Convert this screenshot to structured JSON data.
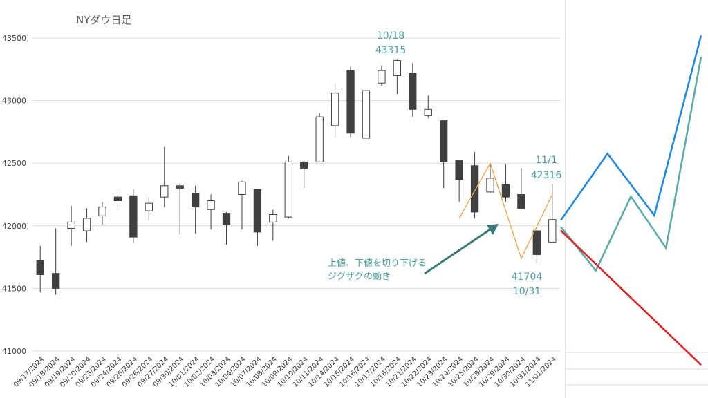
{
  "colors": {
    "up_fill": "#ffffff",
    "down_fill": "#404040",
    "candle_stroke": "#404040",
    "teal": "#4aa3a3",
    "arrow": "#3a7a7a",
    "zigzag": "#f0a040",
    "grid": "#d9d9d9",
    "blue": "#1e88e5",
    "green": "#5aacaa",
    "red": "#e02020"
  },
  "chart_data": [
    {
      "type": "candlestick",
      "title": "NYダウ日足",
      "xlabel": "",
      "ylabel": "",
      "ylim": [
        41000,
        43500
      ],
      "yticks": [
        41000,
        41500,
        42000,
        42500,
        43000,
        43500
      ],
      "grid": true,
      "categories": [
        "09/17/2024",
        "09/18/2024",
        "09/19/2024",
        "09/20/2024",
        "09/23/2024",
        "09/24/2024",
        "09/25/2024",
        "09/26/2024",
        "09/27/2024",
        "09/30/2024",
        "10/01/2024",
        "10/02/2024",
        "10/03/2024",
        "10/04/2024",
        "10/07/2024",
        "10/08/2024",
        "10/09/2024",
        "10/10/2024",
        "10/11/2024",
        "10/14/2024",
        "10/15/2024",
        "10/16/2024",
        "10/17/2024",
        "10/18/2024",
        "10/21/2024",
        "10/22/2024",
        "10/23/2024",
        "10/24/2024",
        "10/25/2024",
        "10/28/2024",
        "10/29/2024",
        "10/30/2024",
        "10/31/2024",
        "11/01/2024"
      ],
      "ohlc": [
        [
          41720,
          41840,
          41470,
          41610
        ],
        [
          41620,
          41980,
          41450,
          41500
        ],
        [
          41980,
          42160,
          41840,
          42030
        ],
        [
          41960,
          42140,
          41870,
          42060
        ],
        [
          42080,
          42190,
          42010,
          42150
        ],
        [
          42230,
          42270,
          42150,
          42200
        ],
        [
          42240,
          42290,
          41860,
          41910
        ],
        [
          42120,
          42220,
          42040,
          42180
        ],
        [
          42230,
          42630,
          42150,
          42320
        ],
        [
          42320,
          42340,
          41930,
          42300
        ],
        [
          42260,
          42320,
          41940,
          42150
        ],
        [
          42130,
          42250,
          41970,
          42200
        ],
        [
          42100,
          42110,
          41850,
          42010
        ],
        [
          42250,
          42360,
          41970,
          42350
        ],
        [
          42290,
          42290,
          41840,
          41950
        ],
        [
          42030,
          42130,
          41880,
          42090
        ],
        [
          42070,
          42560,
          42060,
          42510
        ],
        [
          42510,
          42520,
          42300,
          42460
        ],
        [
          42510,
          42900,
          42510,
          42870
        ],
        [
          42800,
          43140,
          42710,
          43060
        ],
        [
          43240,
          43270,
          42710,
          42740
        ],
        [
          42700,
          43080,
          42690,
          43080
        ],
        [
          43140,
          43280,
          43120,
          43240
        ],
        [
          43200,
          43330,
          43050,
          43320
        ],
        [
          43220,
          43300,
          42870,
          42930
        ],
        [
          42880,
          43040,
          42860,
          42930
        ],
        [
          42840,
          42840,
          42300,
          42510
        ],
        [
          42520,
          42520,
          42190,
          42370
        ],
        [
          42480,
          42590,
          42060,
          42110
        ],
        [
          42270,
          42490,
          42260,
          42380
        ],
        [
          42330,
          42490,
          42190,
          42230
        ],
        [
          42250,
          42460,
          42140,
          42140
        ],
        [
          41960,
          41990,
          41700,
          41770
        ],
        [
          41870,
          42330,
          41860,
          42050
        ]
      ],
      "zigzag": {
        "points": [
          {
            "x": "10/24/2024",
            "y": 42060
          },
          {
            "x": "10/28/2024",
            "y": 42500
          },
          {
            "x": "10/30/2024",
            "y": 41740
          },
          {
            "x": "11/01/2024",
            "y": 42250
          }
        ]
      },
      "annotations": [
        {
          "line1": "10/18",
          "line2": "43315"
        },
        {
          "line1": "11/1",
          "line2": "42316"
        },
        {
          "line1": "41704",
          "line2": "10/31"
        }
      ],
      "note": {
        "line1": "上値、下値を切り下げる",
        "line2": "ジグザグの動き"
      }
    },
    {
      "type": "line",
      "series": [
        {
          "color": "#1e88e5",
          "values": [
            42050,
            42580,
            42090,
            43520
          ]
        },
        {
          "color": "#5aacaa",
          "values": [
            42000,
            41650,
            42240,
            41830,
            43350
          ]
        },
        {
          "color": "#e02020",
          "values": [
            41970,
            40900
          ]
        }
      ]
    }
  ]
}
